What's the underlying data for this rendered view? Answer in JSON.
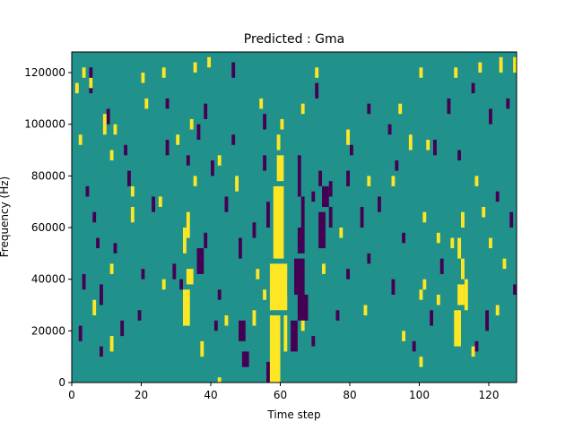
{
  "chart_data": {
    "type": "heatmap",
    "title": "Predicted : Gma",
    "xlabel": "Time step",
    "ylabel": "Frequency (Hz)",
    "xlim": [
      0,
      128
    ],
    "ylim": [
      0,
      128000
    ],
    "xticks": [
      0,
      20,
      40,
      60,
      80,
      100,
      120
    ],
    "yticks": [
      0,
      20000,
      40000,
      60000,
      80000,
      100000,
      120000
    ],
    "ytick_labels": [
      "0",
      "20000",
      "40000",
      "60000",
      "80000",
      "100000",
      "120000"
    ],
    "n_time_steps": 128,
    "n_frequency_bins": 64,
    "bin_height_hz": 2000,
    "colormap": {
      "low": "#440154",
      "mid": "#21918c",
      "high": "#fde725"
    },
    "background_value": "mid",
    "high_cells": [
      [
        57,
        60,
        0,
        13
      ],
      [
        61,
        62,
        6,
        13
      ],
      [
        57,
        62,
        14,
        23
      ],
      [
        58,
        61,
        24,
        38
      ],
      [
        59,
        61,
        39,
        44
      ],
      [
        59,
        60,
        45,
        48
      ],
      [
        60,
        61,
        49,
        51
      ],
      [
        32,
        34,
        11,
        18
      ],
      [
        33,
        35,
        19,
        22
      ],
      [
        32,
        33,
        25,
        30
      ],
      [
        33,
        34,
        28,
        33
      ],
      [
        110,
        112,
        7,
        14
      ],
      [
        111,
        113,
        15,
        19
      ],
      [
        112,
        113,
        20,
        24
      ],
      [
        112,
        113,
        30,
        33
      ],
      [
        113,
        114,
        14,
        20
      ],
      [
        111,
        112,
        24,
        28
      ],
      [
        100,
        101,
        16,
        18
      ],
      [
        105,
        106,
        15,
        17
      ],
      [
        101,
        102,
        18,
        20
      ],
      [
        42,
        43,
        0,
        1
      ],
      [
        37,
        38,
        5,
        8
      ],
      [
        44,
        45,
        11,
        13
      ],
      [
        52,
        53,
        11,
        14
      ],
      [
        26,
        27,
        18,
        20
      ],
      [
        11,
        12,
        6,
        9
      ],
      [
        6,
        7,
        13,
        16
      ],
      [
        11,
        12,
        21,
        23
      ],
      [
        17,
        18,
        31,
        34
      ],
      [
        35,
        36,
        38,
        40
      ],
      [
        34,
        35,
        49,
        51
      ],
      [
        42,
        43,
        42,
        44
      ],
      [
        9,
        10,
        50,
        52
      ],
      [
        2,
        3,
        46,
        48
      ],
      [
        5,
        6,
        57,
        59
      ],
      [
        3,
        4,
        59,
        61
      ],
      [
        1,
        2,
        56,
        58
      ],
      [
        20,
        21,
        58,
        60
      ],
      [
        26,
        27,
        59,
        61
      ],
      [
        35,
        36,
        60,
        62
      ],
      [
        39,
        40,
        61,
        63
      ],
      [
        70,
        71,
        59,
        61
      ],
      [
        100,
        101,
        59,
        61
      ],
      [
        110,
        111,
        59,
        61
      ],
      [
        117,
        118,
        60,
        62
      ],
      [
        123,
        124,
        60,
        63
      ],
      [
        127,
        128,
        60,
        63
      ],
      [
        21,
        22,
        53,
        55
      ],
      [
        54,
        55,
        53,
        55
      ],
      [
        66,
        67,
        52,
        54
      ],
      [
        79,
        80,
        46,
        49
      ],
      [
        97,
        98,
        45,
        48
      ],
      [
        94,
        95,
        52,
        54
      ],
      [
        9,
        10,
        48,
        50
      ],
      [
        12,
        13,
        48,
        50
      ],
      [
        30,
        31,
        46,
        48
      ],
      [
        47,
        48,
        37,
        40
      ],
      [
        85,
        86,
        38,
        40
      ],
      [
        92,
        93,
        38,
        40
      ],
      [
        102,
        103,
        45,
        47
      ],
      [
        118,
        119,
        32,
        34
      ],
      [
        116,
        117,
        38,
        40
      ],
      [
        122,
        123,
        13,
        15
      ],
      [
        115,
        116,
        5,
        7
      ],
      [
        100,
        101,
        3,
        5
      ],
      [
        95,
        96,
        8,
        10
      ],
      [
        84,
        85,
        13,
        15
      ],
      [
        72,
        73,
        21,
        23
      ],
      [
        77,
        78,
        28,
        30
      ],
      [
        66,
        67,
        10,
        12
      ],
      [
        53,
        54,
        20,
        22
      ],
      [
        55,
        56,
        16,
        18
      ],
      [
        25,
        26,
        34,
        36
      ],
      [
        17,
        18,
        36,
        38
      ],
      [
        11,
        12,
        43,
        45
      ],
      [
        101,
        102,
        31,
        33
      ],
      [
        105,
        106,
        27,
        29
      ],
      [
        109,
        110,
        26,
        28
      ],
      [
        120,
        121,
        26,
        28
      ],
      [
        124,
        125,
        22,
        24
      ]
    ],
    "low_cells": [
      [
        63,
        65,
        6,
        12
      ],
      [
        65,
        68,
        12,
        17
      ],
      [
        64,
        67,
        17,
        24
      ],
      [
        65,
        67,
        25,
        30
      ],
      [
        66,
        67,
        30,
        36
      ],
      [
        65,
        66,
        36,
        44
      ],
      [
        71,
        73,
        26,
        33
      ],
      [
        72,
        74,
        34,
        38
      ],
      [
        71,
        72,
        38,
        41
      ],
      [
        74,
        75,
        30,
        34
      ],
      [
        74,
        75,
        36,
        39
      ],
      [
        69,
        70,
        35,
        37
      ],
      [
        29,
        30,
        20,
        23
      ],
      [
        36,
        38,
        21,
        26
      ],
      [
        38,
        39,
        26,
        29
      ],
      [
        41,
        42,
        10,
        12
      ],
      [
        42,
        43,
        16,
        18
      ],
      [
        48,
        49,
        24,
        28
      ],
      [
        48,
        50,
        8,
        12
      ],
      [
        49,
        51,
        3,
        6
      ],
      [
        56,
        58,
        0,
        4
      ],
      [
        56,
        57,
        30,
        35
      ],
      [
        55,
        56,
        41,
        44
      ],
      [
        55,
        56,
        49,
        52
      ],
      [
        46,
        47,
        46,
        48
      ],
      [
        38,
        39,
        51,
        54
      ],
      [
        36,
        37,
        47,
        50
      ],
      [
        27,
        28,
        44,
        47
      ],
      [
        23,
        24,
        33,
        36
      ],
      [
        19,
        20,
        12,
        14
      ],
      [
        12,
        13,
        25,
        27
      ],
      [
        8,
        9,
        15,
        19
      ],
      [
        3,
        4,
        18,
        21
      ],
      [
        2,
        3,
        8,
        11
      ],
      [
        6,
        7,
        31,
        33
      ],
      [
        5,
        6,
        56,
        61
      ],
      [
        10,
        11,
        50,
        53
      ],
      [
        15,
        16,
        44,
        46
      ],
      [
        20,
        21,
        20,
        22
      ],
      [
        31,
        32,
        18,
        20
      ],
      [
        46,
        47,
        59,
        62
      ],
      [
        70,
        71,
        55,
        58
      ],
      [
        80,
        81,
        44,
        46
      ],
      [
        85,
        86,
        52,
        54
      ],
      [
        91,
        92,
        48,
        50
      ],
      [
        93,
        94,
        41,
        43
      ],
      [
        104,
        105,
        44,
        47
      ],
      [
        108,
        109,
        52,
        55
      ],
      [
        111,
        112,
        43,
        45
      ],
      [
        115,
        116,
        56,
        58
      ],
      [
        120,
        121,
        50,
        53
      ],
      [
        125,
        126,
        53,
        55
      ],
      [
        122,
        123,
        35,
        37
      ],
      [
        127,
        128,
        17,
        19
      ],
      [
        126,
        127,
        30,
        33
      ],
      [
        119,
        120,
        10,
        14
      ],
      [
        116,
        117,
        6,
        8
      ],
      [
        103,
        104,
        11,
        14
      ],
      [
        98,
        99,
        6,
        8
      ],
      [
        92,
        93,
        17,
        20
      ],
      [
        85,
        86,
        23,
        25
      ],
      [
        83,
        84,
        30,
        34
      ],
      [
        79,
        80,
        20,
        22
      ],
      [
        76,
        77,
        12,
        14
      ],
      [
        69,
        70,
        7,
        9
      ],
      [
        61,
        62,
        17,
        20
      ],
      [
        52,
        53,
        28,
        31
      ],
      [
        44,
        45,
        33,
        36
      ],
      [
        40,
        41,
        40,
        43
      ],
      [
        33,
        34,
        42,
        44
      ],
      [
        27,
        28,
        53,
        55
      ],
      [
        16,
        17,
        38,
        41
      ],
      [
        4,
        5,
        36,
        38
      ],
      [
        7,
        8,
        26,
        28
      ],
      [
        14,
        15,
        9,
        12
      ],
      [
        8,
        9,
        5,
        7
      ],
      [
        106,
        107,
        21,
        24
      ],
      [
        95,
        96,
        27,
        29
      ],
      [
        88,
        89,
        33,
        36
      ],
      [
        79,
        80,
        38,
        41
      ]
    ]
  }
}
